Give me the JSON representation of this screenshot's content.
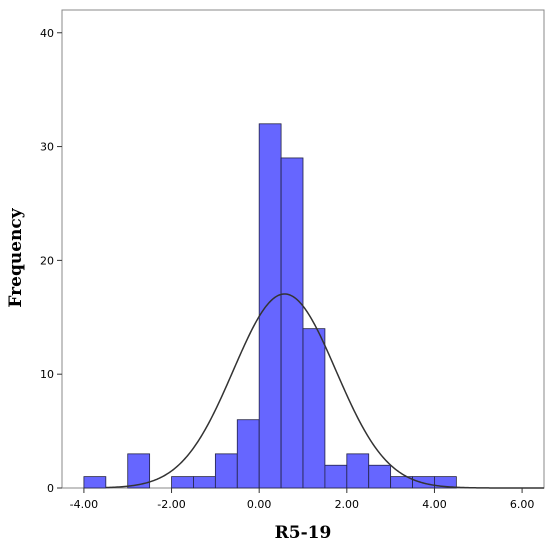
{
  "chart_data": {
    "type": "bar",
    "xlabel": "R5-19",
    "ylabel": "Frequency",
    "xlim": [
      -4.5,
      6.5
    ],
    "ylim": [
      0,
      42
    ],
    "x_ticks": [
      -4.0,
      -2.0,
      0.0,
      2.0,
      4.0,
      6.0
    ],
    "x_tick_labels": [
      "-4.00",
      "-2.00",
      "0.00",
      "2.00",
      "4.00",
      "6.00"
    ],
    "y_ticks": [
      0,
      10,
      20,
      30,
      40
    ],
    "y_tick_labels": [
      "0",
      "10",
      "20",
      "30",
      "40"
    ],
    "bin_width": 0.5,
    "bins": [
      {
        "start": -4.0,
        "end": -3.5,
        "count": 1
      },
      {
        "start": -3.5,
        "end": -3.0,
        "count": 0
      },
      {
        "start": -3.0,
        "end": -2.5,
        "count": 3
      },
      {
        "start": -2.5,
        "end": -2.0,
        "count": 0
      },
      {
        "start": -2.0,
        "end": -1.5,
        "count": 1
      },
      {
        "start": -1.5,
        "end": -1.0,
        "count": 1
      },
      {
        "start": -1.0,
        "end": -0.5,
        "count": 3
      },
      {
        "start": -0.5,
        "end": 0.0,
        "count": 6
      },
      {
        "start": 0.0,
        "end": 0.5,
        "count": 32
      },
      {
        "start": 0.5,
        "end": 1.0,
        "count": 29
      },
      {
        "start": 1.0,
        "end": 1.5,
        "count": 14
      },
      {
        "start": 1.5,
        "end": 2.0,
        "count": 2
      },
      {
        "start": 2.0,
        "end": 2.5,
        "count": 3
      },
      {
        "start": 2.5,
        "end": 3.0,
        "count": 2
      },
      {
        "start": 3.0,
        "end": 3.5,
        "count": 1
      },
      {
        "start": 3.5,
        "end": 4.0,
        "count": 1
      },
      {
        "start": 4.0,
        "end": 4.5,
        "count": 1
      }
    ],
    "normal_curve": {
      "mean": 0.58,
      "sd": 1.17,
      "n": 100
    },
    "grid": false,
    "legend": "none",
    "colors": {
      "bar_fill": "#6666ff",
      "bar_stroke": "#222244",
      "curve": "#333333",
      "frame": "#888888",
      "background": "#ffffff"
    }
  }
}
